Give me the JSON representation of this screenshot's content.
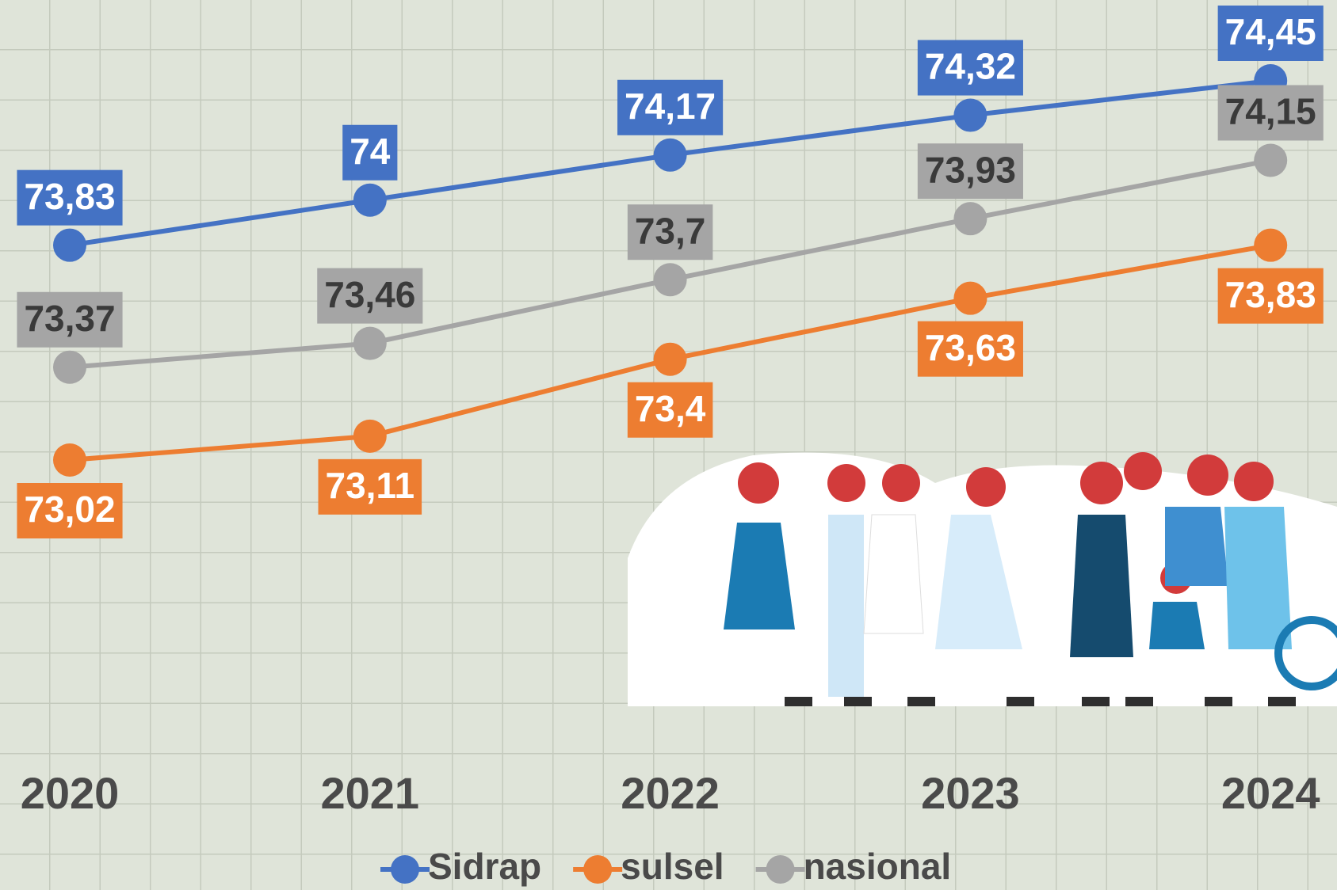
{
  "chart_data": {
    "type": "line",
    "categories": [
      "2020",
      "2021",
      "2022",
      "2023",
      "2024"
    ],
    "series": [
      {
        "name": "Sidrap",
        "color": "#4472c4",
        "label_color": "#ffffff",
        "values": [
          73.83,
          74,
          74.17,
          74.32,
          74.45
        ],
        "value_labels": [
          "73,83",
          "74",
          "74,17",
          "74,32",
          "74,45"
        ]
      },
      {
        "name": "sulsel",
        "color": "#ed7d31",
        "label_color": "#ffffff",
        "values": [
          73.02,
          73.11,
          73.4,
          73.63,
          73.83
        ],
        "value_labels": [
          "73,02",
          "73,11",
          "73,4",
          "73,63",
          "73,83"
        ]
      },
      {
        "name": "nasional",
        "color": "#a5a5a5",
        "label_color": "#3a3a3a",
        "values": [
          73.37,
          73.46,
          73.7,
          73.93,
          74.15
        ],
        "value_labels": [
          "73,37",
          "73,46",
          "73,7",
          "73,93",
          "74,15"
        ]
      }
    ]
  }
}
